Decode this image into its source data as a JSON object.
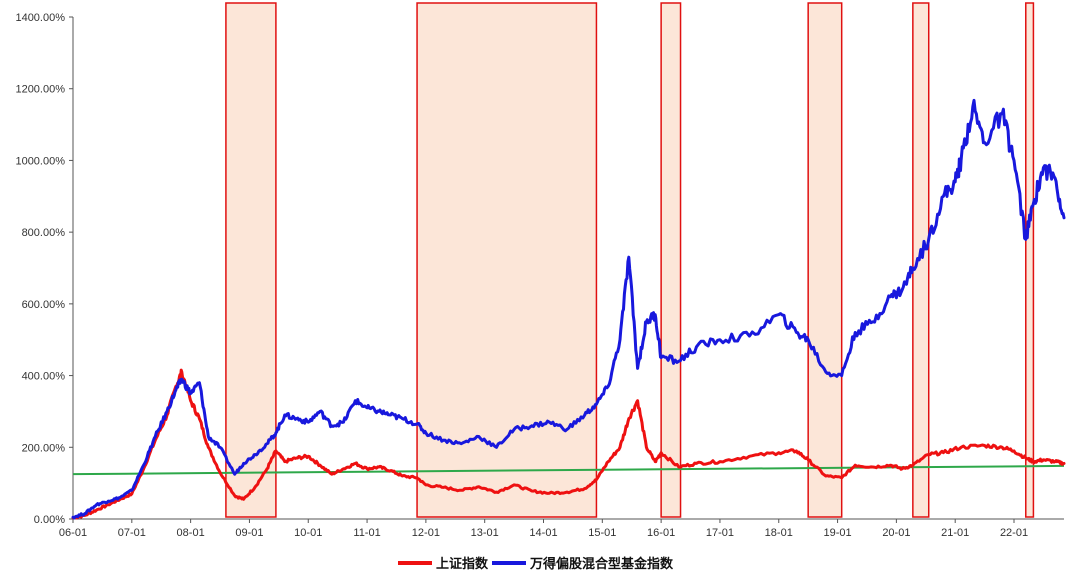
{
  "chart_data": {
    "type": "line",
    "x_labels": [
      "06-01",
      "07-01",
      "08-01",
      "09-01",
      "10-01",
      "11-01",
      "12-01",
      "13-01",
      "14-01",
      "15-01",
      "16-01",
      "17-01",
      "18-01",
      "19-01",
      "20-01",
      "21-01",
      "22-01"
    ],
    "y_labels": [
      "0.00%",
      "200.00%",
      "400.00%",
      "600.00%",
      "800.00%",
      "1000.00%",
      "1200.00%",
      "1400.00%"
    ],
    "ylim": [
      0,
      1400
    ],
    "xlim": [
      2006.0,
      2022.85
    ],
    "grid": false,
    "legend_position": "bottom",
    "shaded_periods": [
      [
        2008.6,
        2009.45
      ],
      [
        2011.85,
        2014.9
      ],
      [
        2016.0,
        2016.33
      ],
      [
        2018.5,
        2019.07
      ],
      [
        2020.28,
        2020.55
      ],
      [
        2022.2,
        2022.33
      ]
    ],
    "trend_line": {
      "color": "#2ea84a",
      "x": [
        2006.0,
        2022.85
      ],
      "y": [
        125,
        148
      ]
    },
    "series": [
      {
        "name": "上证指数",
        "color": "#ee1111",
        "x": [
          2006.0,
          2006.2,
          2006.4,
          2006.6,
          2006.8,
          2007.0,
          2007.2,
          2007.4,
          2007.6,
          2007.75,
          2007.85,
          2008.0,
          2008.15,
          2008.3,
          2008.5,
          2008.75,
          2008.9,
          2009.1,
          2009.3,
          2009.45,
          2009.6,
          2009.8,
          2010.0,
          2010.2,
          2010.4,
          2010.6,
          2010.8,
          2011.0,
          2011.2,
          2011.4,
          2011.6,
          2011.85,
          2012.0,
          2012.3,
          2012.6,
          2012.9,
          2013.2,
          2013.5,
          2013.8,
          2014.1,
          2014.4,
          2014.7,
          2014.9,
          2015.1,
          2015.3,
          2015.45,
          2015.6,
          2015.75,
          2015.9,
          2016.0,
          2016.3,
          2016.6,
          2017.0,
          2017.5,
          2018.0,
          2018.3,
          2018.5,
          2018.8,
          2019.07,
          2019.3,
          2019.6,
          2019.9,
          2020.1,
          2020.28,
          2020.55,
          2020.8,
          2021.1,
          2021.5,
          2021.8,
          2022.0,
          2022.2,
          2022.33,
          2022.5,
          2022.7,
          2022.85
        ],
        "y": [
          3,
          10,
          25,
          40,
          55,
          70,
          140,
          220,
          290,
          370,
          410,
          330,
          280,
          200,
          130,
          65,
          55,
          90,
          140,
          190,
          160,
          170,
          175,
          150,
          125,
          140,
          155,
          140,
          145,
          135,
          120,
          115,
          95,
          88,
          80,
          90,
          75,
          95,
          78,
          72,
          75,
          85,
          110,
          160,
          200,
          280,
          330,
          200,
          160,
          185,
          145,
          155,
          160,
          175,
          185,
          190,
          165,
          120,
          115,
          150,
          145,
          150,
          140,
          150,
          180,
          185,
          200,
          205,
          200,
          190,
          170,
          160,
          165,
          160,
          155
        ]
      },
      {
        "name": "万得偏股混合型基金指数",
        "color": "#1818dd",
        "x": [
          2006.0,
          2006.2,
          2006.4,
          2006.6,
          2006.8,
          2007.0,
          2007.2,
          2007.4,
          2007.6,
          2007.75,
          2007.85,
          2008.0,
          2008.15,
          2008.3,
          2008.5,
          2008.75,
          2008.9,
          2009.1,
          2009.3,
          2009.45,
          2009.6,
          2009.8,
          2010.0,
          2010.2,
          2010.4,
          2010.6,
          2010.8,
          2011.0,
          2011.2,
          2011.4,
          2011.6,
          2011.85,
          2012.0,
          2012.3,
          2012.6,
          2012.9,
          2013.2,
          2013.5,
          2013.8,
          2014.1,
          2014.4,
          2014.7,
          2014.9,
          2015.1,
          2015.3,
          2015.45,
          2015.6,
          2015.75,
          2015.9,
          2016.0,
          2016.3,
          2016.6,
          2017.0,
          2017.5,
          2018.0,
          2018.3,
          2018.5,
          2018.8,
          2019.07,
          2019.3,
          2019.6,
          2019.9,
          2020.1,
          2020.28,
          2020.55,
          2020.8,
          2021.0,
          2021.1,
          2021.3,
          2021.5,
          2021.8,
          2022.0,
          2022.2,
          2022.33,
          2022.5,
          2022.7,
          2022.85
        ],
        "y": [
          5,
          15,
          40,
          50,
          60,
          80,
          150,
          230,
          300,
          360,
          390,
          350,
          380,
          230,
          200,
          125,
          155,
          180,
          210,
          240,
          290,
          280,
          270,
          300,
          260,
          270,
          330,
          310,
          300,
          290,
          280,
          265,
          240,
          220,
          210,
          230,
          200,
          250,
          260,
          270,
          250,
          290,
          320,
          370,
          500,
          730,
          420,
          550,
          570,
          450,
          440,
          480,
          500,
          510,
          570,
          520,
          500,
          410,
          400,
          520,
          550,
          620,
          640,
          700,
          780,
          900,
          940,
          1000,
          1150,
          1050,
          1130,
          1000,
          780,
          880,
          980,
          950,
          840
        ]
      }
    ]
  }
}
